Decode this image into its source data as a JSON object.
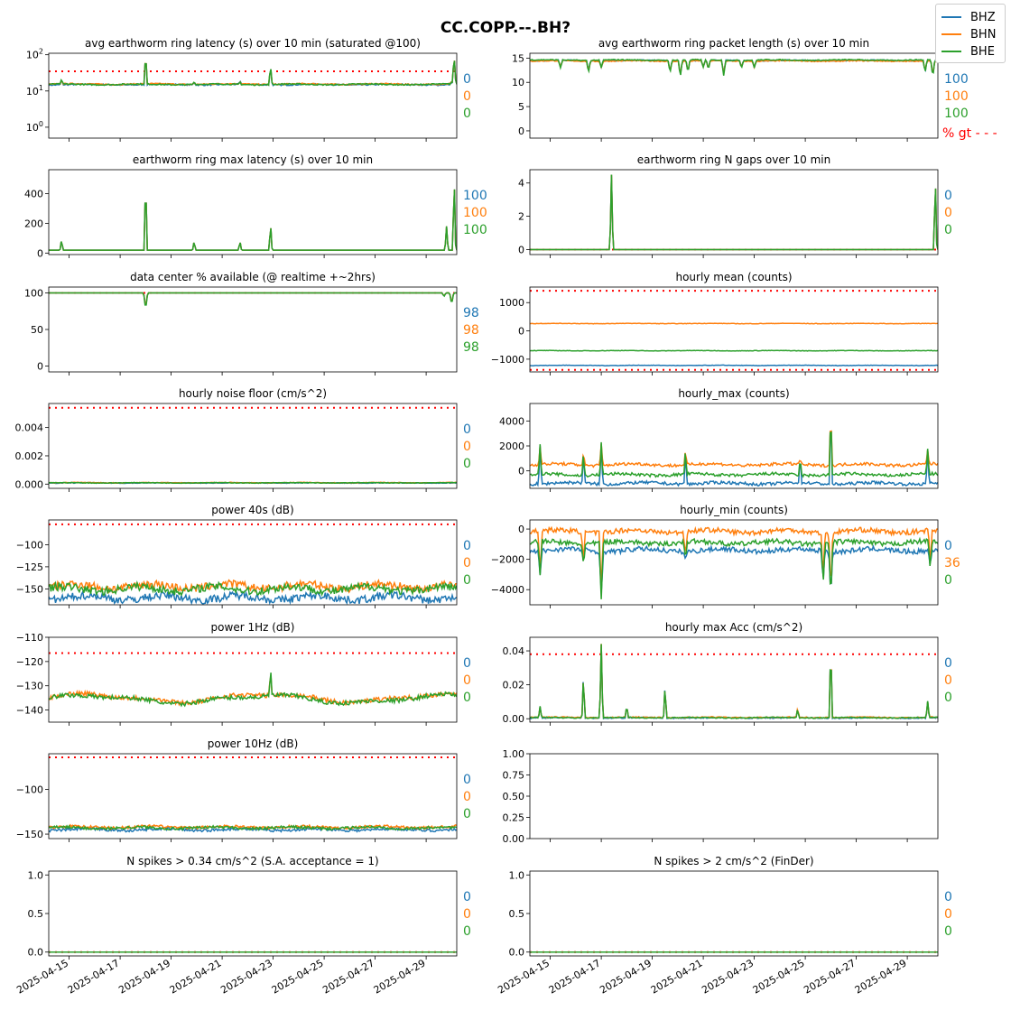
{
  "suptitle": "CC.COPP.--.BH?",
  "colors": {
    "BHZ": "#1f77b4",
    "BHN": "#ff7f0e",
    "BHE": "#2ca02c",
    "threshold": "#ff0000"
  },
  "legend": [
    "BHZ",
    "BHN",
    "BHE"
  ],
  "x_tick_labels": [
    "2025-04-15",
    "2025-04-17",
    "2025-04-19",
    "2025-04-21",
    "2025-04-23",
    "2025-04-25",
    "2025-04-27",
    "2025-04-29"
  ],
  "x_range_days": [
    14.2,
    30.2
  ],
  "chart_data": [
    {
      "id": "p0",
      "type": "line",
      "title": "avg earthworm ring latency (s)   over 10 min (saturated @100)",
      "yscale": "log",
      "ylim": [
        0.5,
        110
      ],
      "yticks": [
        {
          "v": 1,
          "label": "10^0"
        },
        {
          "v": 10,
          "label": "10^1"
        },
        {
          "v": 100,
          "label": "10^2"
        }
      ],
      "threshold": 35,
      "stats": [
        "0",
        "0",
        "0"
      ],
      "series": [
        {
          "name": "BHZ",
          "base": 15
        },
        {
          "name": "BHN",
          "base": 15.5
        },
        {
          "name": "BHE",
          "base": 15.2
        }
      ],
      "spikes": [
        [
          14.7,
          20
        ],
        [
          18.0,
          80
        ],
        [
          19.9,
          18
        ],
        [
          21.7,
          18
        ],
        [
          22.9,
          45
        ],
        [
          30.0,
          18
        ],
        [
          30.1,
          80
        ]
      ]
    },
    {
      "id": "p1",
      "type": "line",
      "title": "avg earthworm ring packet length (s)   over 10 min",
      "ylim": [
        -1.5,
        16
      ],
      "yticks": [
        {
          "v": 0,
          "label": "0"
        },
        {
          "v": 5,
          "label": "5"
        },
        {
          "v": 10,
          "label": "10"
        },
        {
          "v": 15,
          "label": "15"
        }
      ],
      "stats": [
        "100",
        "100",
        "100"
      ],
      "footnote": "% gt - - -",
      "series": [
        {
          "name": "BHZ",
          "base": 14.5
        },
        {
          "name": "BHN",
          "base": 14.4
        },
        {
          "name": "BHE",
          "base": 14.6
        }
      ],
      "dips": [
        [
          15.4,
          13
        ],
        [
          16.5,
          12
        ],
        [
          17.0,
          13
        ],
        [
          19.7,
          12
        ],
        [
          20.1,
          11
        ],
        [
          20.4,
          12
        ],
        [
          21.0,
          13
        ],
        [
          21.2,
          12.5
        ],
        [
          21.8,
          11.5
        ],
        [
          22.5,
          13
        ],
        [
          23.0,
          13
        ],
        [
          29.7,
          12
        ],
        [
          30.0,
          11
        ]
      ]
    },
    {
      "id": "p2",
      "type": "line",
      "title": "earthworm ring max latency (s)   over 10 min",
      "ylim": [
        -10,
        560
      ],
      "yticks": [
        {
          "v": 0,
          "label": "0"
        },
        {
          "v": 200,
          "label": "200"
        },
        {
          "v": 400,
          "label": "400"
        }
      ],
      "stats": [
        "100",
        "100",
        "100"
      ],
      "series": [
        {
          "name": "BHZ",
          "base": 20
        },
        {
          "name": "BHN",
          "base": 20
        },
        {
          "name": "BHE",
          "base": 20
        }
      ],
      "spikes": [
        [
          14.7,
          90
        ],
        [
          18.0,
          520
        ],
        [
          19.9,
          80
        ],
        [
          21.7,
          80
        ],
        [
          22.9,
          200
        ],
        [
          29.8,
          180
        ],
        [
          30.1,
          520
        ]
      ]
    },
    {
      "id": "p3",
      "type": "line",
      "title": "earthworm ring N gaps   over 10 min",
      "ylim": [
        -0.3,
        4.8
      ],
      "yticks": [
        {
          "v": 0,
          "label": "0"
        },
        {
          "v": 2,
          "label": "2"
        },
        {
          "v": 4,
          "label": "4"
        }
      ],
      "threshold": 0,
      "stats": [
        "0",
        "0",
        "0"
      ],
      "series": [
        {
          "name": "BHZ",
          "base": 0
        },
        {
          "name": "BHN",
          "base": 0
        },
        {
          "name": "BHE",
          "base": 0
        }
      ],
      "spikes": [
        [
          17.4,
          4.5
        ],
        [
          30.1,
          4.5
        ]
      ]
    },
    {
      "id": "p4",
      "type": "line",
      "title": "data center % available (@ realtime +~2hrs)",
      "ylim": [
        -8,
        108
      ],
      "yticks": [
        {
          "v": 0,
          "label": "0"
        },
        {
          "v": 50,
          "label": "50"
        },
        {
          "v": 100,
          "label": "100"
        }
      ],
      "threshold": 100,
      "stats": [
        "98",
        "98",
        "98"
      ],
      "series": [
        {
          "name": "BHZ",
          "base": 100
        },
        {
          "name": "BHN",
          "base": 100
        },
        {
          "name": "BHE",
          "base": 100
        }
      ],
      "dips": [
        [
          18.0,
          77
        ],
        [
          29.7,
          95
        ],
        [
          30.0,
          84
        ]
      ]
    },
    {
      "id": "p5",
      "type": "line",
      "title": "hourly mean (counts)",
      "ylim": [
        -1450,
        1550
      ],
      "yticks": [
        {
          "v": -1000,
          "label": "−1000"
        },
        {
          "v": 0,
          "label": "0"
        },
        {
          "v": 1000,
          "label": "1000"
        }
      ],
      "threshold_lo": -1380,
      "threshold_hi": 1420,
      "stats": [],
      "series": [
        {
          "name": "BHZ",
          "base": -1220
        },
        {
          "name": "BHN",
          "base": 260
        },
        {
          "name": "BHE",
          "base": -700
        }
      ]
    },
    {
      "id": "p6",
      "type": "line",
      "title": "hourly noise floor (cm/s^2)",
      "ylim": [
        -0.0003,
        0.0057
      ],
      "yticks": [
        {
          "v": 0,
          "label": "0.000"
        },
        {
          "v": 0.002,
          "label": "0.002"
        },
        {
          "v": 0.004,
          "label": "0.004"
        }
      ],
      "threshold": 0.0054,
      "stats": [
        "0",
        "0",
        "0"
      ],
      "series": [
        {
          "name": "BHZ",
          "base": 8e-05
        },
        {
          "name": "BHN",
          "base": 0.0001
        },
        {
          "name": "BHE",
          "base": 9e-05
        }
      ]
    },
    {
      "id": "p7",
      "type": "line",
      "title": "hourly_max (counts)",
      "ylim": [
        -1400,
        5400
      ],
      "yticks": [
        {
          "v": 0,
          "label": "0"
        },
        {
          "v": 2000,
          "label": "2000"
        },
        {
          "v": 4000,
          "label": "4000"
        }
      ],
      "stats": [],
      "series": [
        {
          "name": "BHZ",
          "base": -1000
        },
        {
          "name": "BHN",
          "base": 500
        },
        {
          "name": "BHE",
          "base": -300
        }
      ],
      "spikes": [
        [
          14.6,
          2000
        ],
        [
          16.3,
          1500
        ],
        [
          17.0,
          2200
        ],
        [
          20.3,
          1600
        ],
        [
          24.8,
          1000
        ],
        [
          26.0,
          4900
        ],
        [
          29.8,
          1700
        ]
      ]
    },
    {
      "id": "p8",
      "type": "line",
      "title": "power 40s (dB)",
      "ylim": [
        -168,
        -72
      ],
      "yticks": [
        {
          "v": -150,
          "label": "−150"
        },
        {
          "v": -125,
          "label": "−125"
        },
        {
          "v": -100,
          "label": "−100"
        }
      ],
      "threshold": -77,
      "stats": [
        "0",
        "0",
        "0"
      ],
      "series": [
        {
          "name": "BHZ",
          "base": -160
        },
        {
          "name": "BHN",
          "base": -147
        },
        {
          "name": "BHE",
          "base": -150
        }
      ]
    },
    {
      "id": "p9",
      "type": "line",
      "title": "hourly_min (counts)",
      "ylim": [
        -5000,
        600
      ],
      "yticks": [
        {
          "v": -4000,
          "label": "−4000"
        },
        {
          "v": -2000,
          "label": "−2000"
        },
        {
          "v": 0,
          "label": "0"
        }
      ],
      "stats": [
        "0",
        "36",
        "0"
      ],
      "series": [
        {
          "name": "BHZ",
          "base": -1400
        },
        {
          "name": "BHN",
          "base": -150
        },
        {
          "name": "BHE",
          "base": -900
        }
      ],
      "dips": [
        [
          14.6,
          -3200
        ],
        [
          16.3,
          -2200
        ],
        [
          17.0,
          -4700
        ],
        [
          20.3,
          -2000
        ],
        [
          25.7,
          -3600
        ],
        [
          26.0,
          -4800
        ],
        [
          29.9,
          -2600
        ]
      ]
    },
    {
      "id": "p10",
      "type": "line",
      "title": "power 1Hz (dB)",
      "ylim": [
        -145,
        -110
      ],
      "yticks": [
        {
          "v": -140,
          "label": "−140"
        },
        {
          "v": -130,
          "label": "−130"
        },
        {
          "v": -120,
          "label": "−120"
        },
        {
          "v": -110,
          "label": "−110"
        }
      ],
      "threshold": -116.5,
      "stats": [
        "0",
        "0",
        "0"
      ],
      "series": [
        {
          "name": "BHZ",
          "base": -150
        },
        {
          "name": "BHN",
          "base": -135
        },
        {
          "name": "BHE",
          "base": -135.5
        }
      ],
      "spikes": [
        [
          22.9,
          -124
        ]
      ]
    },
    {
      "id": "p11",
      "type": "line",
      "title": "hourly max Acc (cm/s^2)",
      "ylim": [
        -0.002,
        0.048
      ],
      "yticks": [
        {
          "v": 0,
          "label": "0.00"
        },
        {
          "v": 0.02,
          "label": "0.02"
        },
        {
          "v": 0.04,
          "label": "0.04"
        }
      ],
      "threshold": 0.038,
      "stats": [
        "0",
        "0",
        "0"
      ],
      "series": [
        {
          "name": "BHZ",
          "base": 0.0005
        },
        {
          "name": "BHN",
          "base": 0.0008
        },
        {
          "name": "BHE",
          "base": 0.0006
        }
      ],
      "spikes": [
        [
          14.6,
          0.007
        ],
        [
          16.3,
          0.026
        ],
        [
          17.0,
          0.044
        ],
        [
          18.0,
          0.008
        ],
        [
          19.5,
          0.02
        ],
        [
          24.7,
          0.006
        ],
        [
          26.0,
          0.045
        ],
        [
          29.8,
          0.01
        ]
      ]
    },
    {
      "id": "p12",
      "type": "line",
      "title": "power 10Hz (dB)",
      "ylim": [
        -155,
        -60
      ],
      "yticks": [
        {
          "v": -150,
          "label": "−150"
        },
        {
          "v": -100,
          "label": "−100"
        }
      ],
      "threshold": -64,
      "stats": [
        "0",
        "0",
        "0"
      ],
      "series": [
        {
          "name": "BHZ",
          "base": -145
        },
        {
          "name": "BHN",
          "base": -142
        },
        {
          "name": "BHE",
          "base": -143
        }
      ]
    },
    {
      "id": "p13",
      "type": "empty",
      "title": "",
      "ylim": [
        0,
        1
      ],
      "yticks": [
        {
          "v": 0,
          "label": "0.00"
        },
        {
          "v": 0.25,
          "label": "0.25"
        },
        {
          "v": 0.5,
          "label": "0.50"
        },
        {
          "v": 0.75,
          "label": "0.75"
        },
        {
          "v": 1,
          "label": "1.00"
        }
      ],
      "stats": [],
      "series": []
    },
    {
      "id": "p14",
      "type": "line",
      "title": "N spikes > 0.34 cm/s^2 (S.A. acceptance = 1)",
      "ylim": [
        -0.05,
        1.05
      ],
      "yticks": [
        {
          "v": 0,
          "label": "0.0"
        },
        {
          "v": 0.5,
          "label": "0.5"
        },
        {
          "v": 1,
          "label": "1.0"
        }
      ],
      "threshold": 0,
      "stats": [
        "0",
        "0",
        "0"
      ],
      "series": [
        {
          "name": "BHZ",
          "base": 0
        },
        {
          "name": "BHN",
          "base": 0
        },
        {
          "name": "BHE",
          "base": 0
        }
      ]
    },
    {
      "id": "p15",
      "type": "line",
      "title": "N spikes > 2 cm/s^2 (FinDer)",
      "ylim": [
        -0.05,
        1.05
      ],
      "yticks": [
        {
          "v": 0,
          "label": "0.0"
        },
        {
          "v": 0.5,
          "label": "0.5"
        },
        {
          "v": 1,
          "label": "1.0"
        }
      ],
      "threshold": 0,
      "stats": [
        "0",
        "0",
        "0"
      ],
      "series": [
        {
          "name": "BHZ",
          "base": 0
        },
        {
          "name": "BHN",
          "base": 0
        },
        {
          "name": "BHE",
          "base": 0
        }
      ]
    }
  ]
}
